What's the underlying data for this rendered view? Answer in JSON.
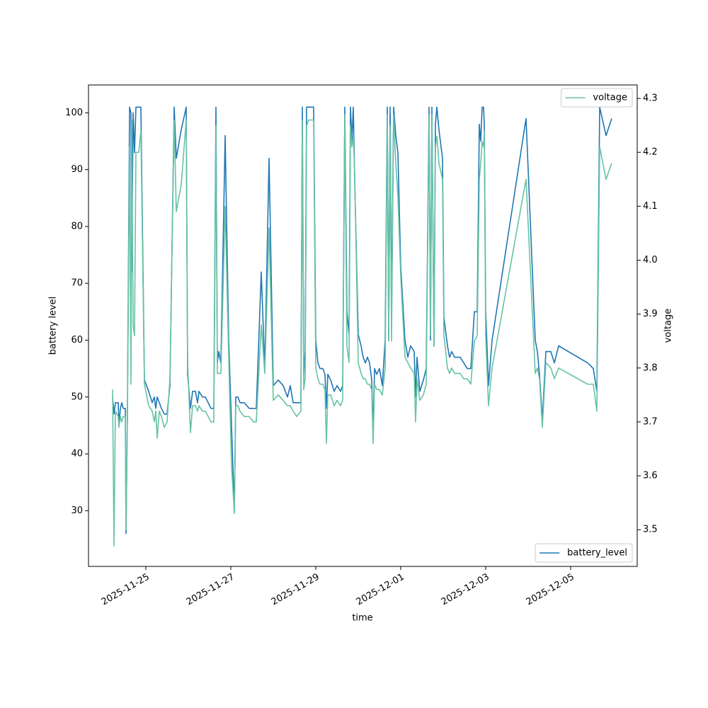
{
  "chart_data": {
    "type": "line",
    "xlabel": "time",
    "ylabel": "battery level",
    "y2label": "voltage",
    "xlim": [
      "2025-11-23 15:36",
      "2025-12-06 13:36"
    ],
    "xticks": [
      "2025-11-25",
      "2025-11-27",
      "2025-11-29",
      "2025-12-01",
      "2025-12-03",
      "2025-12-05"
    ],
    "ylim": [
      20.2,
      104.9
    ],
    "yticks": [
      30,
      40,
      50,
      60,
      70,
      80,
      90,
      100
    ],
    "y2lim": [
      3.432,
      4.325
    ],
    "y2ticks": [
      3.5,
      3.6,
      3.7,
      3.8,
      3.9,
      {
        "value": 4,
        "label": "4.0"
      },
      4.1,
      4.2,
      4.3
    ],
    "x": [
      "2025-11-24 05:12",
      "2025-11-24 06:00",
      "2025-11-24 06:48",
      "2025-11-24 08:24",
      "2025-11-24 08:48",
      "2025-11-24 09:36",
      "2025-11-24 10:24",
      "2025-11-24 11:12",
      "2025-11-24 12:24",
      "2025-11-24 12:48",
      "2025-11-24 13:36",
      "2025-11-24 14:48",
      "2025-11-24 15:36",
      "2025-11-24 16:00",
      "2025-11-24 16:48",
      "2025-11-24 17:36",
      "2025-11-24 18:24",
      "2025-11-24 20:00",
      "2025-11-24 21:12",
      "2025-11-24 23:12",
      "2025-11-25 00:24",
      "2025-11-25 01:36",
      "2025-11-25 03:36",
      "2025-11-25 04:48",
      "2025-11-25 05:36",
      "2025-11-25 06:24",
      "2025-11-25 07:36",
      "2025-11-25 08:48",
      "2025-11-25 10:24",
      "2025-11-25 12:00",
      "2025-11-25 13:36",
      "2025-11-25 16:00",
      "2025-11-25 17:12",
      "2025-11-25 20:00",
      "2025-11-25 22:48",
      "2025-11-25 23:36",
      "2025-11-26 01:12",
      "2025-11-26 02:24",
      "2025-11-26 04:00",
      "2025-11-26 05:12",
      "2025-11-26 06:00",
      "2025-11-26 08:00",
      "2025-11-26 09:36",
      "2025-11-26 11:12",
      "2025-11-26 12:48",
      "2025-11-26 14:24",
      "2025-11-26 15:36",
      "2025-11-26 16:24",
      "2025-11-26 17:12",
      "2025-11-26 18:24",
      "2025-11-26 20:48",
      "2025-11-26 22:48",
      "2025-11-27 00:24",
      "2025-11-27 02:00",
      "2025-11-27 02:48",
      "2025-11-27 04:00",
      "2025-11-27 05:12",
      "2025-11-27 07:36",
      "2025-11-27 10:24",
      "2025-11-27 12:48",
      "2025-11-27 14:24",
      "2025-11-27 17:12",
      "2025-11-27 19:12",
      "2025-11-27 21:36",
      "2025-11-28 00:00",
      "2025-11-28 02:48",
      "2025-11-28 05:36",
      "2025-11-28 08:00",
      "2025-11-28 09:36",
      "2025-11-28 11:12",
      "2025-11-28 13:12",
      "2025-11-28 15:36",
      "2025-11-28 16:24",
      "2025-11-28 17:12",
      "2025-11-28 18:00",
      "2025-11-28 18:48",
      "2025-11-28 20:00",
      "2025-11-28 21:36",
      "2025-11-28 22:48",
      "2025-11-29 00:00",
      "2025-11-29 01:12",
      "2025-11-29 02:24",
      "2025-11-29 04:00",
      "2025-11-29 05:12",
      "2025-11-29 06:00",
      "2025-11-29 06:48",
      "2025-11-29 08:24",
      "2025-11-29 10:24",
      "2025-11-29 12:00",
      "2025-11-29 14:00",
      "2025-11-29 15:12",
      "2025-11-29 16:24",
      "2025-11-29 17:36",
      "2025-11-29 18:48",
      "2025-11-29 19:36",
      "2025-11-29 20:24",
      "2025-11-29 21:12",
      "2025-11-29 22:00",
      "2025-11-30 00:00",
      "2025-11-30 01:36",
      "2025-11-30 02:48",
      "2025-11-30 04:00",
      "2025-11-30 05:12",
      "2025-11-30 06:24",
      "2025-11-30 07:36",
      "2025-11-30 08:24",
      "2025-11-30 09:12",
      "2025-11-30 10:24",
      "2025-11-30 12:00",
      "2025-11-30 13:36",
      "2025-11-30 15:12",
      "2025-11-30 16:24",
      "2025-11-30 17:12",
      "2025-11-30 18:00",
      "2025-11-30 18:48",
      "2025-11-30 20:00",
      "2025-11-30 21:12",
      "2025-11-30 22:24",
      "2025-12-01 00:00",
      "2025-12-01 02:24",
      "2025-12-01 04:00",
      "2025-12-01 05:36",
      "2025-12-01 07:36",
      "2025-12-01 08:24",
      "2025-12-01 09:12",
      "2025-12-01 10:48",
      "2025-12-01 12:48",
      "2025-12-01 14:24",
      "2025-12-01 16:00",
      "2025-12-01 16:48",
      "2025-12-01 17:36",
      "2025-12-01 18:48",
      "2025-12-01 19:36",
      "2025-12-01 20:24",
      "2025-12-01 21:36",
      "2025-12-01 23:36",
      "2025-12-02 00:24",
      "2025-12-02 02:24",
      "2025-12-02 03:36",
      "2025-12-02 04:48",
      "2025-12-02 06:24",
      "2025-12-02 09:36",
      "2025-12-02 11:36",
      "2025-12-02 13:36",
      "2025-12-02 15:36",
      "2025-12-02 17:36",
      "2025-12-02 19:12",
      "2025-12-02 20:24",
      "2025-12-02 21:12",
      "2025-12-02 22:00",
      "2025-12-02 22:48",
      "2025-12-02 23:12",
      "2025-12-03 00:00",
      "2025-12-03 01:36",
      "2025-12-03 03:36",
      "2025-12-03 22:48",
      "2025-12-04 04:00",
      "2025-12-04 05:12",
      "2025-12-04 06:24",
      "2025-12-04 08:00",
      "2025-12-04 10:00",
      "2025-12-04 12:48",
      "2025-12-04 14:48",
      "2025-12-04 17:12",
      "2025-12-05 09:36",
      "2025-12-05 12:48",
      "2025-12-05 14:48",
      "2025-12-05 16:24",
      "2025-12-05 20:00",
      "2025-12-05 23:12"
    ],
    "series": [
      {
        "name": "battery_level",
        "color": "#1f77b4",
        "axis": "y",
        "legend": "lower right",
        "values": [
          50,
          47,
          49,
          49,
          45,
          48,
          49,
          48,
          48,
          26,
          48,
          101,
          100,
          72,
          100,
          93,
          101,
          101,
          101,
          53,
          52,
          51,
          49,
          50,
          48,
          50,
          49,
          48,
          47,
          47,
          52,
          101,
          92,
          97,
          101,
          54,
          48,
          51,
          51,
          49,
          51,
          50,
          50,
          49,
          48,
          48,
          101,
          56,
          58,
          56,
          96,
          60,
          45,
          30,
          50,
          50,
          49,
          49,
          48,
          48,
          48,
          72,
          55,
          92,
          52,
          53,
          52,
          50,
          52,
          49,
          49,
          49,
          101,
          54,
          58,
          101,
          101,
          101,
          101,
          60,
          56,
          55,
          55,
          54,
          48,
          54,
          53,
          51,
          52,
          51,
          52,
          101,
          65,
          61,
          101,
          95,
          101,
          88,
          61,
          59,
          57,
          56,
          57,
          56,
          53,
          44,
          55,
          54,
          55,
          52,
          60,
          101,
          60,
          101,
          65,
          101,
          96,
          93,
          73,
          60,
          57,
          59,
          58,
          50,
          57,
          51,
          53,
          55,
          101,
          60,
          101,
          59,
          98,
          101,
          97,
          92,
          64,
          59,
          57,
          58,
          57,
          57,
          56,
          55,
          55,
          65,
          65,
          98,
          95,
          101,
          101,
          98,
          65,
          52,
          60,
          99,
          60,
          58,
          54,
          46,
          58,
          58,
          56,
          59,
          56,
          55,
          51,
          101,
          96,
          99
        ]
      },
      {
        "name": "voltage",
        "color": "#66c2a5",
        "axis": "y2",
        "legend": "upper right",
        "values": [
          3.76,
          3.47,
          3.72,
          3.71,
          3.69,
          3.71,
          3.7,
          3.71,
          3.71,
          3.5,
          3.71,
          4.21,
          3.77,
          4.26,
          3.88,
          3.86,
          4.2,
          4.2,
          4.24,
          3.77,
          3.75,
          3.73,
          3.72,
          3.7,
          3.72,
          3.67,
          3.72,
          3.71,
          3.69,
          3.7,
          3.78,
          4.26,
          4.09,
          4.14,
          4.26,
          3.81,
          3.68,
          3.73,
          3.73,
          3.72,
          3.73,
          3.72,
          3.72,
          3.71,
          3.7,
          3.7,
          4.25,
          3.79,
          3.79,
          3.79,
          4.1,
          3.82,
          3.62,
          3.53,
          3.73,
          3.73,
          3.72,
          3.71,
          3.71,
          3.7,
          3.7,
          3.88,
          3.79,
          4.06,
          3.74,
          3.75,
          3.74,
          3.73,
          3.73,
          3.72,
          3.71,
          3.72,
          4.26,
          3.76,
          3.78,
          4.25,
          4.26,
          4.26,
          4.26,
          3.8,
          3.78,
          3.77,
          3.77,
          3.76,
          3.66,
          3.75,
          3.75,
          3.73,
          3.74,
          3.73,
          3.74,
          4.27,
          3.84,
          3.81,
          4.25,
          4.21,
          4.23,
          4.16,
          3.81,
          3.79,
          3.78,
          3.78,
          3.77,
          3.77,
          3.76,
          3.66,
          3.77,
          3.76,
          3.76,
          3.75,
          3.8,
          4.27,
          3.85,
          4.25,
          3.85,
          4.27,
          4.18,
          4.12,
          3.97,
          3.82,
          3.81,
          3.8,
          3.79,
          3.7,
          3.78,
          3.74,
          3.75,
          3.77,
          4.27,
          3.86,
          4.27,
          3.84,
          4.21,
          4.23,
          4.18,
          4.15,
          3.86,
          3.8,
          3.79,
          3.8,
          3.79,
          3.79,
          3.78,
          3.78,
          3.77,
          3.85,
          3.86,
          4.15,
          4.18,
          4.22,
          4.21,
          4.24,
          3.86,
          3.73,
          3.8,
          4.15,
          3.79,
          3.8,
          3.78,
          3.69,
          3.81,
          3.8,
          3.78,
          3.8,
          3.77,
          3.77,
          3.72,
          4.21,
          4.15,
          4.18
        ]
      }
    ]
  }
}
